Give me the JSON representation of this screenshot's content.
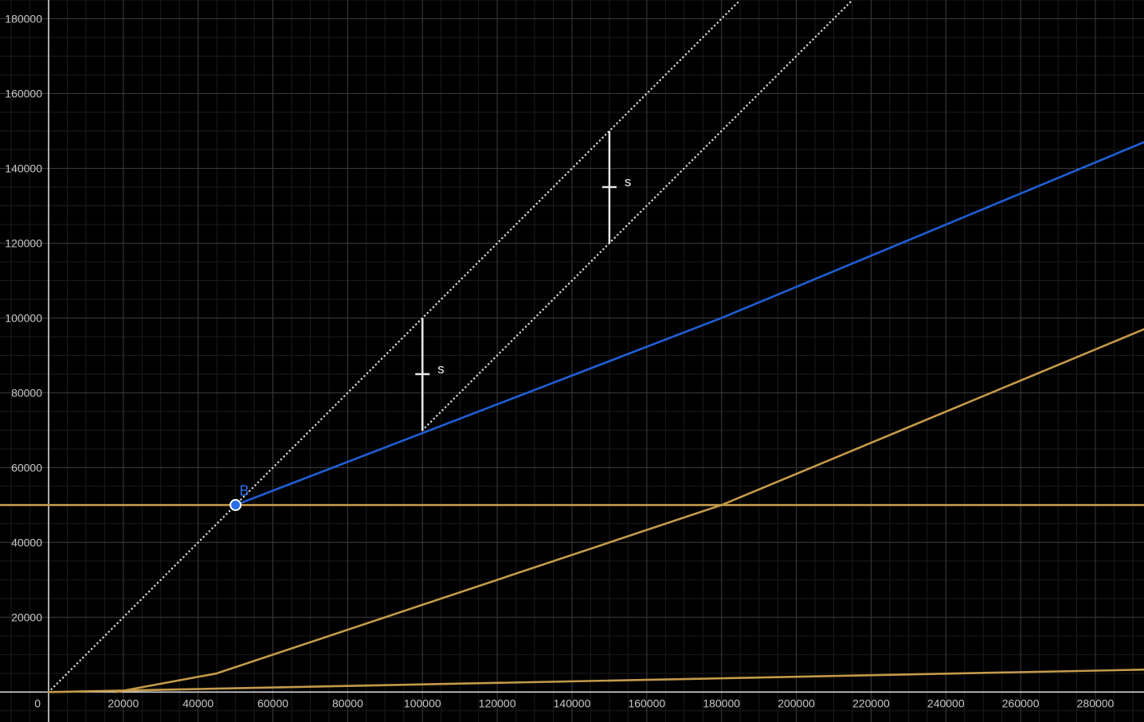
{
  "graph": {
    "background": "#000000",
    "minor_grid_color": "#1c1c1c",
    "major_grid_color": "#3a3a3a",
    "axis_color": "#e6e6e6",
    "x_range": [
      -13000,
      293000
    ],
    "y_range": [
      -8000,
      185000
    ],
    "x_major_step": 20000,
    "y_major_step": 20000,
    "x_ticks": [
      "20000",
      "40000",
      "60000",
      "80000",
      "100000",
      "120000",
      "140000",
      "160000",
      "180000",
      "200000",
      "220000",
      "240000",
      "260000",
      "280000"
    ],
    "y_ticks": [
      "20000",
      "40000",
      "60000",
      "80000",
      "100000",
      "120000",
      "140000",
      "160000",
      "180000"
    ],
    "origin_label": "0"
  },
  "chart_data": {
    "type": "line",
    "series": [
      {
        "kind": "dotted",
        "color": "#d9d9d9",
        "points": [
          [
            0,
            0
          ],
          [
            185000,
            185000
          ]
        ]
      },
      {
        "kind": "dotted",
        "color": "#d9d9d9",
        "points": [
          [
            100000,
            70000
          ],
          [
            215000,
            185000
          ]
        ]
      },
      {
        "kind": "solid",
        "color": "#1f5fd6",
        "points": [
          [
            50000,
            50000
          ],
          [
            180000,
            100000
          ],
          [
            293000,
            147000
          ]
        ]
      },
      {
        "kind": "solid",
        "color": "#c49a4a",
        "points": [
          [
            -13000,
            50000
          ],
          [
            293000,
            50000
          ]
        ]
      },
      {
        "kind": "solid",
        "color": "#c49a4a",
        "points": [
          [
            18000,
            0
          ],
          [
            45000,
            5000
          ],
          [
            180000,
            50000
          ],
          [
            293000,
            97000
          ]
        ]
      },
      {
        "kind": "solid",
        "color": "#c49a4a",
        "points": [
          [
            0,
            0
          ],
          [
            293000,
            6000
          ]
        ]
      }
    ],
    "segments": [
      {
        "label": "s",
        "x": 100000,
        "y1": 70000,
        "y2": 100000,
        "color": "#e8e8e8"
      },
      {
        "label": "s",
        "x": 150000,
        "y1": 120000,
        "y2": 150000,
        "color": "#e8e8e8"
      }
    ],
    "points": [
      {
        "label": "B",
        "x": 50000,
        "y": 50000,
        "color": "#2a6fe8"
      }
    ]
  }
}
